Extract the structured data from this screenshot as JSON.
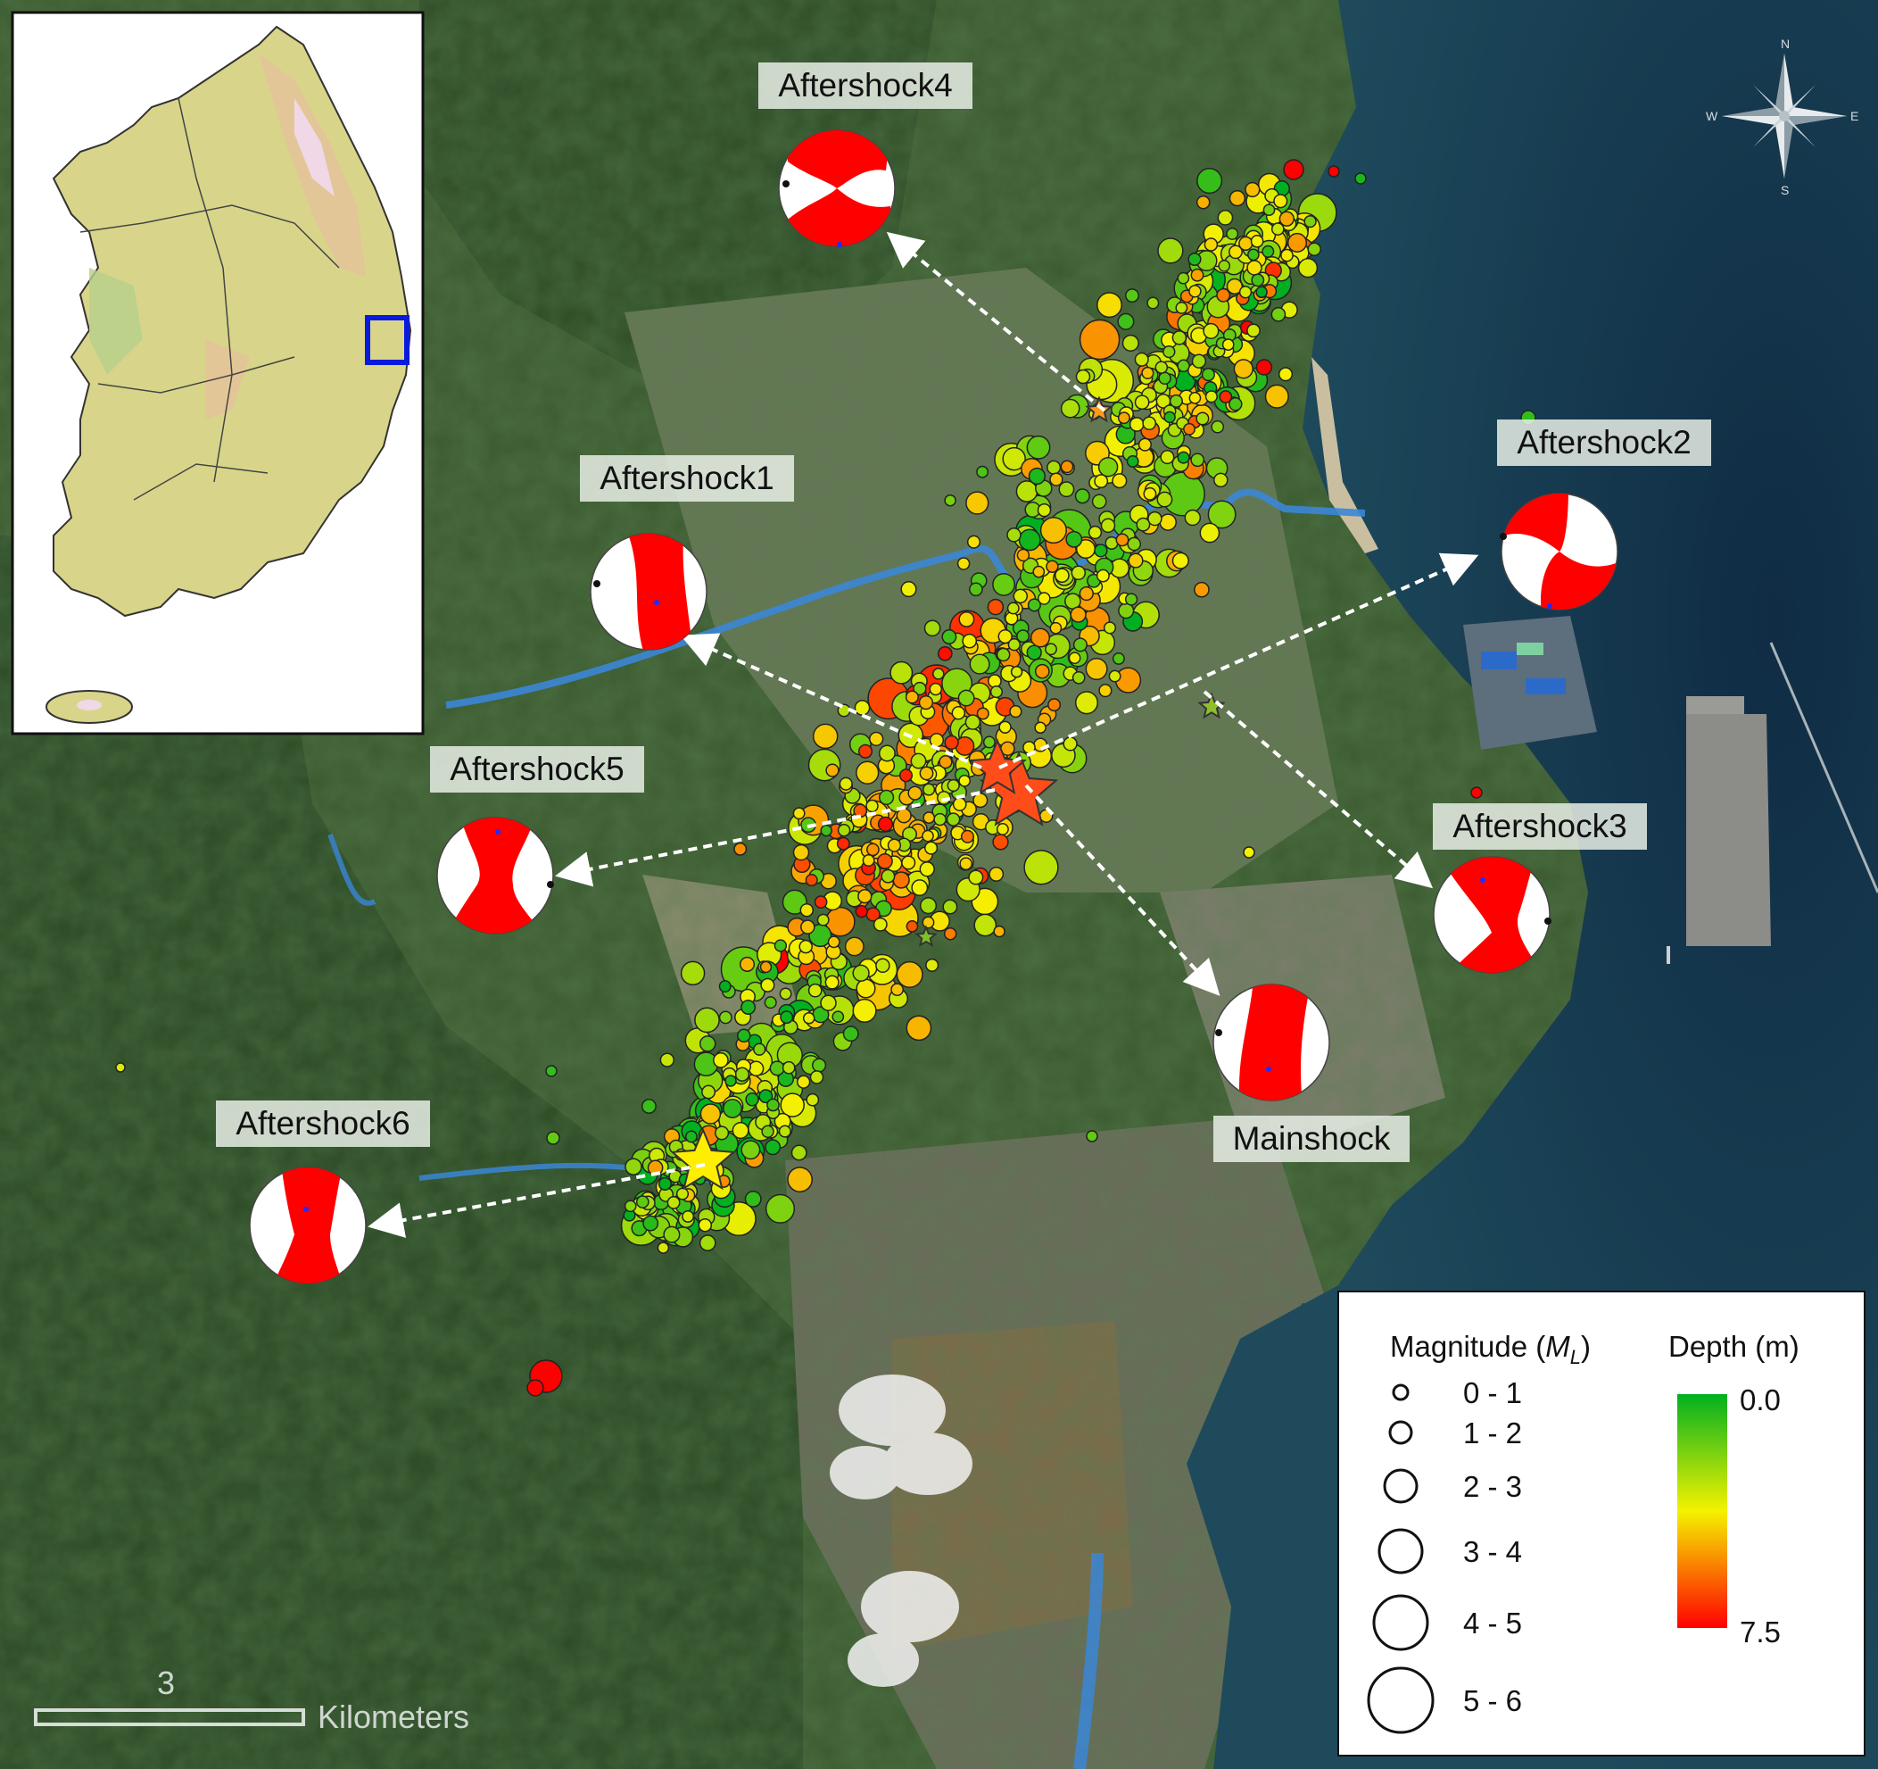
{
  "map": {
    "focal_mechanisms": [
      {
        "label": "Aftershock4"
      },
      {
        "label": "Aftershock1"
      },
      {
        "label": "Aftershock2"
      },
      {
        "label": "Aftershock5"
      },
      {
        "label": "Aftershock3"
      },
      {
        "label": "Mainshock"
      },
      {
        "label": "Aftershock6"
      }
    ],
    "legend": {
      "magnitude_title": "Magnitude (",
      "magnitude_symbol": "M",
      "magnitude_subscript": "L",
      "magnitude_close": ")",
      "magnitude_classes": [
        "0 - 1",
        "1 - 2",
        "2 - 3",
        "3 - 4",
        "4 - 5",
        "5 - 6"
      ],
      "depth_title": "Depth (m)",
      "depth_min": "0.0",
      "depth_max": "7.5",
      "depth_colors": [
        "#00b020",
        "#f5f200",
        "#ff0000"
      ]
    },
    "scale_bar": {
      "value": "3",
      "unit": "Kilometers"
    },
    "compass": {
      "n": "N",
      "e": "E",
      "s": "S",
      "w": "W"
    },
    "inset": {
      "highlight_color": "#0a1adc"
    },
    "mainshock_star_color": "#ff4d1a",
    "aftershock6_star_color": "#ffee00"
  }
}
